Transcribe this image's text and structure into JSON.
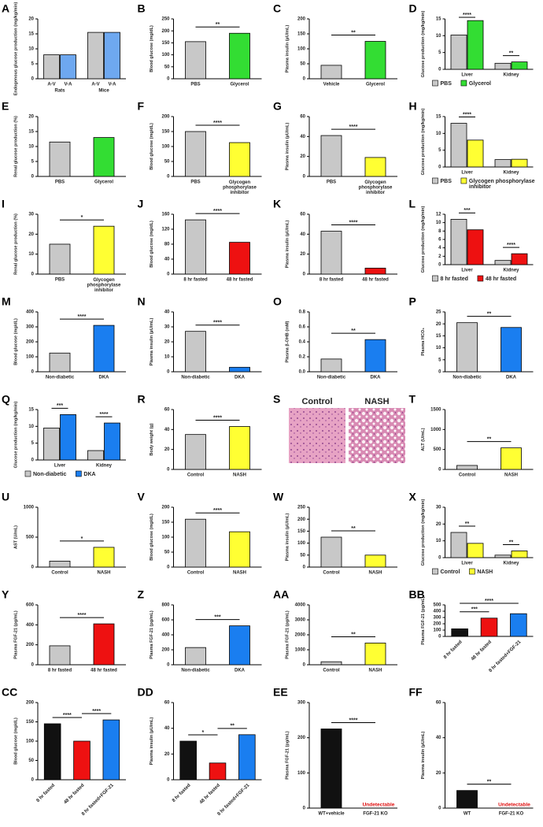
{
  "chart_data": [
    {
      "letter": "A",
      "type": "bar",
      "ylabel": "Endogenous glucose production (mg/kg/min)",
      "ylim": [
        0,
        20
      ],
      "yticks": [
        0,
        5,
        10,
        15,
        20
      ],
      "categories": [
        "A-V",
        "V-A",
        "A-V",
        "V-A"
      ],
      "groups": [
        "Rats",
        "Mice"
      ],
      "values": [
        8,
        8,
        15.5,
        15.5
      ],
      "colors": [
        "#c8c8c8",
        "#6ea8f0",
        "#c8c8c8",
        "#6ea8f0"
      ],
      "sig": []
    },
    {
      "letter": "B",
      "type": "bar",
      "ylabel": "Blood glucose (mg/dL)",
      "ylim": [
        0,
        250
      ],
      "yticks": [
        0,
        50,
        100,
        150,
        200,
        250
      ],
      "categories": [
        "PBS",
        "Glycerol"
      ],
      "values": [
        155,
        190
      ],
      "colors": [
        "#c8c8c8",
        "#33dd33"
      ],
      "sig": [
        {
          "label": "**",
          "bars": [
            0,
            1
          ]
        }
      ]
    },
    {
      "letter": "C",
      "type": "bar",
      "ylabel": "Plasma insulin (µU/mL)",
      "ylim": [
        0,
        200
      ],
      "yticks": [
        0,
        50,
        100,
        150,
        200
      ],
      "categories": [
        "Vehicle",
        "Glycerol"
      ],
      "values": [
        45,
        125
      ],
      "colors": [
        "#c8c8c8",
        "#33dd33"
      ],
      "sig": [
        {
          "label": "**",
          "bars": [
            0,
            1
          ]
        }
      ]
    },
    {
      "letter": "D",
      "type": "bar",
      "ylabel": "Glucose production (mg/kg/min)",
      "ylim": [
        0,
        15
      ],
      "yticks": [
        0,
        5,
        10,
        15
      ],
      "groups": [
        "Liver",
        "Kidney"
      ],
      "values": [
        10.2,
        14.5,
        1.8,
        2.2
      ],
      "colors": [
        "#c8c8c8",
        "#33dd33",
        "#c8c8c8",
        "#33dd33"
      ],
      "legend": [
        {
          "name": "PBS",
          "color": "#c8c8c8"
        },
        {
          "name": "Glycerol",
          "color": "#33dd33"
        }
      ],
      "sig": [
        {
          "label": "****",
          "bars": [
            0,
            1
          ]
        },
        {
          "label": "**",
          "bars": [
            2,
            3
          ]
        }
      ]
    },
    {
      "letter": "E",
      "type": "bar",
      "ylabel": "Renal glucose production (%)",
      "ylim": [
        0,
        20
      ],
      "yticks": [
        0,
        5,
        10,
        15,
        20
      ],
      "categories": [
        "PBS",
        "Glycerol"
      ],
      "values": [
        11.5,
        13
      ],
      "colors": [
        "#c8c8c8",
        "#33dd33"
      ],
      "sig": []
    },
    {
      "letter": "F",
      "type": "bar",
      "ylabel": "Blood glucose (mg/dL)",
      "ylim": [
        0,
        200
      ],
      "yticks": [
        0,
        50,
        100,
        150,
        200
      ],
      "categories": [
        "PBS",
        "Glycogen phosphorylase inhibitor"
      ],
      "values": [
        150,
        113
      ],
      "colors": [
        "#c8c8c8",
        "#ffff33"
      ],
      "sig": [
        {
          "label": "****",
          "bars": [
            0,
            1
          ]
        }
      ]
    },
    {
      "letter": "G",
      "type": "bar",
      "ylabel": "Plasma insulin (µU/mL)",
      "ylim": [
        0,
        60
      ],
      "yticks": [
        0,
        20,
        40,
        60
      ],
      "categories": [
        "PBS",
        "Glycogen phosphorylase inhibitor"
      ],
      "values": [
        41,
        19
      ],
      "colors": [
        "#c8c8c8",
        "#ffff33"
      ],
      "sig": [
        {
          "label": "****",
          "bars": [
            0,
            1
          ]
        }
      ]
    },
    {
      "letter": "H",
      "type": "bar",
      "ylabel": "Glucose production (mg/kg/min)",
      "ylim": [
        0,
        15
      ],
      "yticks": [
        0,
        5,
        10,
        15
      ],
      "groups": [
        "Liver",
        "Kidney"
      ],
      "values": [
        13,
        8,
        2.2,
        2.3
      ],
      "colors": [
        "#c8c8c8",
        "#ffff33",
        "#c8c8c8",
        "#ffff33"
      ],
      "legend": [
        {
          "name": "PBS",
          "color": "#c8c8c8"
        },
        {
          "name": "Glycogen phosphorylase inhibitor",
          "color": "#ffff33"
        }
      ],
      "sig": [
        {
          "label": "****",
          "bars": [
            0,
            1
          ]
        }
      ]
    },
    {
      "letter": "I",
      "type": "bar",
      "ylabel": "Renal glucose production (%)",
      "ylim": [
        0,
        30
      ],
      "yticks": [
        0,
        10,
        20,
        30
      ],
      "categories": [
        "PBS",
        "Glycogen phosphorylase inhibitor"
      ],
      "values": [
        15,
        24
      ],
      "colors": [
        "#c8c8c8",
        "#ffff33"
      ],
      "sig": [
        {
          "label": "*",
          "bars": [
            0,
            1
          ]
        }
      ]
    },
    {
      "letter": "J",
      "type": "bar",
      "ylabel": "Blood glucose (mg/dL)",
      "ylim": [
        0,
        160
      ],
      "yticks": [
        0,
        40,
        80,
        120,
        160
      ],
      "categories": [
        "8 hr fasted",
        "48 hr fasted"
      ],
      "values": [
        145,
        85
      ],
      "colors": [
        "#c8c8c8",
        "#ee1111"
      ],
      "sig": [
        {
          "label": "****",
          "bars": [
            0,
            1
          ]
        }
      ]
    },
    {
      "letter": "K",
      "type": "bar",
      "ylabel": "Plasma insulin (µU/mL)",
      "ylim": [
        0,
        60
      ],
      "yticks": [
        0,
        20,
        40,
        60
      ],
      "categories": [
        "8 hr fasted",
        "48 hr fasted"
      ],
      "values": [
        43,
        6
      ],
      "colors": [
        "#c8c8c8",
        "#ee1111"
      ],
      "sig": [
        {
          "label": "****",
          "bars": [
            0,
            1
          ]
        }
      ]
    },
    {
      "letter": "L",
      "type": "bar",
      "ylabel": "Glucose production (mg/kg/min)",
      "ylim": [
        0,
        12
      ],
      "yticks": [
        0,
        2,
        4,
        6,
        8,
        10,
        12
      ],
      "groups": [
        "Liver",
        "Kidney"
      ],
      "values": [
        10.8,
        8.3,
        1.0,
        2.6
      ],
      "colors": [
        "#c8c8c8",
        "#ee1111",
        "#c8c8c8",
        "#ee1111"
      ],
      "legend": [
        {
          "name": "8 hr fasted",
          "color": "#c8c8c8"
        },
        {
          "name": "48 hr fasted",
          "color": "#ee1111"
        }
      ],
      "sig": [
        {
          "label": "***",
          "bars": [
            0,
            1
          ]
        },
        {
          "label": "****",
          "bars": [
            2,
            3
          ]
        }
      ]
    },
    {
      "letter": "M",
      "type": "bar",
      "ylabel": "Blood glucose (mg/dL)",
      "ylim": [
        0,
        400
      ],
      "yticks": [
        0,
        100,
        200,
        300,
        400
      ],
      "categories": [
        "Non-diabetic",
        "DKA"
      ],
      "values": [
        125,
        310
      ],
      "colors": [
        "#c8c8c8",
        "#1a7ef0"
      ],
      "sig": [
        {
          "label": "****",
          "bars": [
            0,
            1
          ]
        }
      ]
    },
    {
      "letter": "N",
      "type": "bar",
      "ylabel": "Plasma insulin (µU/mL)",
      "ylim": [
        0,
        40
      ],
      "yticks": [
        0,
        10,
        20,
        30,
        40
      ],
      "categories": [
        "Non-diabetic",
        "DKA"
      ],
      "values": [
        27,
        3
      ],
      "colors": [
        "#c8c8c8",
        "#1a7ef0"
      ],
      "sig": [
        {
          "label": "****",
          "bars": [
            0,
            1
          ]
        }
      ]
    },
    {
      "letter": "O",
      "type": "bar",
      "ylabel": "Plasma β-OHB (mM)",
      "ylim": [
        0,
        0.8
      ],
      "yticks": [
        {
          "value": 0,
          "label": "0.0"
        },
        0.2,
        0.4,
        0.6,
        0.8
      ],
      "categories": [
        "Non-diabetic",
        "DKA"
      ],
      "values": [
        0.17,
        0.43
      ],
      "colors": [
        "#c8c8c8",
        "#1a7ef0"
      ],
      "sig": [
        {
          "label": "**",
          "bars": [
            0,
            1
          ]
        }
      ]
    },
    {
      "letter": "P",
      "type": "bar",
      "ylabel": "Plasma HCO₃",
      "ylim": [
        0,
        25
      ],
      "yticks": [
        0,
        5,
        10,
        15,
        20,
        25
      ],
      "categories": [
        "Non-diabetic",
        "DKA"
      ],
      "values": [
        20.5,
        18.5
      ],
      "colors": [
        "#c8c8c8",
        "#1a7ef0"
      ],
      "sig": [
        {
          "label": "**",
          "bars": [
            0,
            1
          ]
        }
      ]
    },
    {
      "letter": "Q",
      "type": "bar",
      "ylabel": "Glucose production (mg/kg/min)",
      "ylim": [
        0,
        15
      ],
      "yticks": [
        0,
        5,
        10,
        15
      ],
      "groups": [
        "Liver",
        "Kidney"
      ],
      "values": [
        9.5,
        13.5,
        2.8,
        11
      ],
      "colors": [
        "#c8c8c8",
        "#1a7ef0",
        "#c8c8c8",
        "#1a7ef0"
      ],
      "legend": [
        {
          "name": "Non-diabetic",
          "color": "#c8c8c8"
        },
        {
          "name": "DKA",
          "color": "#1a7ef0"
        }
      ],
      "sig": [
        {
          "label": "***",
          "bars": [
            0,
            1
          ]
        },
        {
          "label": "****",
          "bars": [
            2,
            3
          ]
        }
      ]
    },
    {
      "letter": "R",
      "type": "bar",
      "ylabel": "Body weight (g)",
      "ylim": [
        0,
        60
      ],
      "yticks": [
        0,
        20,
        40,
        60
      ],
      "categories": [
        "Control",
        "NASH"
      ],
      "values": [
        35,
        43
      ],
      "colors": [
        "#c8c8c8",
        "#ffff33"
      ],
      "sig": [
        {
          "label": "****",
          "bars": [
            0,
            1
          ]
        }
      ]
    },
    {
      "letter": "S",
      "type": "image",
      "labels": [
        "Control",
        "NASH"
      ]
    },
    {
      "letter": "T",
      "type": "bar",
      "ylabel": "ALT (U/mL)",
      "ylim": [
        0,
        1500
      ],
      "yticks": [
        0,
        500,
        1000,
        1500
      ],
      "categories": [
        "Control",
        "NASH"
      ],
      "values": [
        100,
        540
      ],
      "colors": [
        "#c8c8c8",
        "#ffff33"
      ],
      "sig": [
        {
          "label": "**",
          "bars": [
            0,
            1
          ]
        }
      ]
    },
    {
      "letter": "U",
      "type": "bar",
      "ylabel": "AST (U/mL)",
      "ylim": [
        0,
        1000
      ],
      "yticks": [
        0,
        500,
        1000
      ],
      "categories": [
        "Control",
        "NASH"
      ],
      "values": [
        100,
        330
      ],
      "colors": [
        "#c8c8c8",
        "#ffff33"
      ],
      "sig": [
        {
          "label": "*",
          "bars": [
            0,
            1
          ]
        }
      ]
    },
    {
      "letter": "V",
      "type": "bar",
      "ylabel": "Blood glucose (mg/dL)",
      "ylim": [
        0,
        200
      ],
      "yticks": [
        0,
        50,
        100,
        150,
        200
      ],
      "categories": [
        "Control",
        "NASH"
      ],
      "values": [
        160,
        118
      ],
      "colors": [
        "#c8c8c8",
        "#ffff33"
      ],
      "sig": [
        {
          "label": "****",
          "bars": [
            0,
            1
          ]
        }
      ]
    },
    {
      "letter": "W",
      "type": "bar",
      "ylabel": "Plasma insulin (µU/mL)",
      "ylim": [
        0,
        250
      ],
      "yticks": [
        0,
        50,
        100,
        150,
        200,
        250
      ],
      "categories": [
        "Control",
        "NASH"
      ],
      "values": [
        125,
        50
      ],
      "colors": [
        "#c8c8c8",
        "#ffff33"
      ],
      "sig": [
        {
          "label": "**",
          "bars": [
            0,
            1
          ]
        }
      ]
    },
    {
      "letter": "X",
      "type": "bar",
      "ylabel": "Glucose production (mg/kg/min)",
      "ylim": [
        0,
        30
      ],
      "yticks": [
        0,
        10,
        20,
        30
      ],
      "groups": [
        "Liver",
        "Kidney"
      ],
      "values": [
        15,
        8.5,
        1.5,
        4
      ],
      "colors": [
        "#c8c8c8",
        "#ffff33",
        "#c8c8c8",
        "#ffff33"
      ],
      "legend": [
        {
          "name": "Control",
          "color": "#c8c8c8"
        },
        {
          "name": "NASH",
          "color": "#ffff33"
        }
      ],
      "sig": [
        {
          "label": "**",
          "bars": [
            0,
            1
          ]
        },
        {
          "label": "**",
          "bars": [
            2,
            3
          ]
        }
      ]
    },
    {
      "letter": "Y",
      "type": "bar",
      "ylabel": "Plasma FGF-21 (pg/mL)",
      "ylim": [
        0,
        600
      ],
      "yticks": [
        0,
        200,
        400,
        600
      ],
      "categories": [
        "8 hr fasted",
        "48 hr fasted"
      ],
      "values": [
        190,
        410
      ],
      "colors": [
        "#c8c8c8",
        "#ee1111"
      ],
      "sig": [
        {
          "label": "****",
          "bars": [
            0,
            1
          ]
        }
      ]
    },
    {
      "letter": "Z",
      "type": "bar",
      "ylabel": "Plasma FGF-21 (pg/mL)",
      "ylim": [
        0,
        800
      ],
      "yticks": [
        0,
        200,
        400,
        600,
        800
      ],
      "categories": [
        "Non-diabetic",
        "DKA"
      ],
      "values": [
        230,
        520
      ],
      "colors": [
        "#c8c8c8",
        "#1a7ef0"
      ],
      "sig": [
        {
          "label": "***",
          "bars": [
            0,
            1
          ]
        }
      ]
    },
    {
      "letter": "AA",
      "type": "bar",
      "ylabel": "Plasma FGF-21 (pg/mL)",
      "ylim": [
        0,
        4000
      ],
      "yticks": [
        0,
        1000,
        2000,
        3000,
        4000
      ],
      "categories": [
        "Control",
        "NASH"
      ],
      "values": [
        200,
        1450
      ],
      "colors": [
        "#c8c8c8",
        "#ffff33"
      ],
      "sig": [
        {
          "label": "**",
          "bars": [
            0,
            1
          ]
        }
      ]
    },
    {
      "letter": "BB",
      "type": "bar",
      "ylabel": "Plasma FGF-21 (pg/mL)",
      "ylim": [
        0,
        500
      ],
      "yticks": [
        0,
        100,
        200,
        300,
        400,
        500
      ],
      "categories": [
        "8 hr fasted",
        "48 hr fasted",
        "8 hr fasted+FGF-21"
      ],
      "values": [
        120,
        290,
        360
      ],
      "colors": [
        "#111111",
        "#ee1111",
        "#1a7ef0"
      ],
      "rotate_labels": true,
      "sig": [
        {
          "label": "***",
          "bars": [
            0,
            1
          ]
        },
        {
          "label": "****",
          "bars": [
            0,
            2
          ]
        }
      ]
    },
    {
      "letter": "CC",
      "type": "bar",
      "ylabel": "Blood glucose (mg/dL)",
      "ylim": [
        0,
        200
      ],
      "yticks": [
        0,
        50,
        100,
        150,
        200
      ],
      "categories": [
        "8 hr fasted",
        "48 hr fasted",
        "8 hr fasted+FGF-21"
      ],
      "values": [
        145,
        100,
        155
      ],
      "colors": [
        "#111111",
        "#ee1111",
        "#1a7ef0"
      ],
      "rotate_labels": true,
      "sig": [
        {
          "label": "****",
          "bars": [
            0,
            1
          ]
        },
        {
          "label": "****",
          "bars": [
            1,
            2
          ]
        }
      ]
    },
    {
      "letter": "DD",
      "type": "bar",
      "ylabel": "Plasma insulin (µU/mL)",
      "ylim": [
        0,
        60
      ],
      "yticks": [
        0,
        20,
        40,
        60
      ],
      "categories": [
        "8 hr fasted",
        "48 hr fasted",
        "8 hr fasted+FGF-21"
      ],
      "values": [
        30,
        13,
        35
      ],
      "colors": [
        "#111111",
        "#ee1111",
        "#1a7ef0"
      ],
      "rotate_labels": true,
      "sig": [
        {
          "label": "*",
          "bars": [
            0,
            1
          ]
        },
        {
          "label": "**",
          "bars": [
            1,
            2
          ]
        }
      ]
    },
    {
      "letter": "EE",
      "type": "bar",
      "ylabel": "Plasma FGF-21 (pg/mL)",
      "ylim": [
        0,
        300
      ],
      "yticks": [
        0,
        100,
        200,
        300
      ],
      "categories": [
        "WT+vehicle",
        "FGF-21 KO"
      ],
      "values": [
        225,
        null
      ],
      "colors": [
        "#111111",
        "#111111"
      ],
      "note": "Undetectable",
      "sig": [
        {
          "label": "****",
          "bars": [
            0,
            1
          ]
        }
      ]
    },
    {
      "letter": "FF",
      "type": "bar",
      "ylabel": "Plasma insulin (µU/mL)",
      "ylim": [
        0,
        60
      ],
      "yticks": [
        0,
        20,
        40,
        60
      ],
      "categories": [
        "WT",
        "FGF-21 KO"
      ],
      "values": [
        10,
        null
      ],
      "colors": [
        "#111111",
        "#111111"
      ],
      "note": "Undetectable",
      "sig": [
        {
          "label": "**",
          "bars": [
            0,
            1
          ]
        }
      ]
    }
  ]
}
